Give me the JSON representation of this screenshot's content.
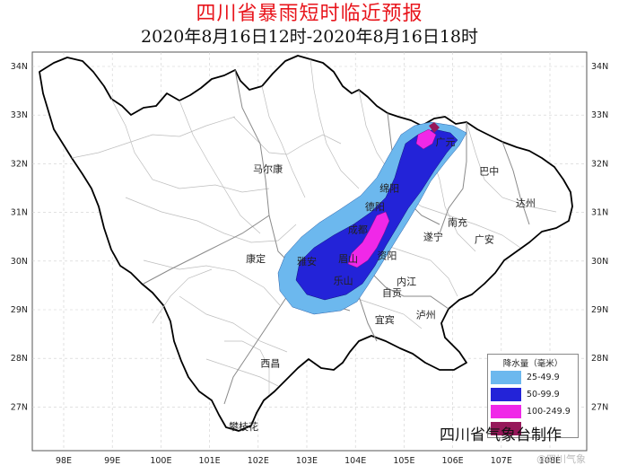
{
  "title": "四川省暴雨短时临近预报",
  "subtitle": "2020年8月16日12时-2020年8月16日18时",
  "lon_ticks": [
    "98E",
    "99E",
    "100E",
    "101E",
    "102E",
    "103E",
    "104E",
    "105E",
    "106E",
    "107E",
    "108E"
  ],
  "lat_ticks": [
    "34N",
    "33N",
    "32N",
    "31N",
    "30N",
    "29N",
    "28N",
    "27N"
  ],
  "cities": [
    {
      "name": "马尔康",
      "lon": 102.2,
      "lat": 31.9
    },
    {
      "name": "康定",
      "lon": 101.95,
      "lat": 30.05
    },
    {
      "name": "西昌",
      "lon": 102.25,
      "lat": 27.9
    },
    {
      "name": "攀枝花",
      "lon": 101.7,
      "lat": 26.6
    },
    {
      "name": "绵阳",
      "lon": 104.7,
      "lat": 31.5
    },
    {
      "name": "广元",
      "lon": 105.85,
      "lat": 32.45
    },
    {
      "name": "巴中",
      "lon": 106.75,
      "lat": 31.85
    },
    {
      "name": "达州",
      "lon": 107.5,
      "lat": 31.2
    },
    {
      "name": "南充",
      "lon": 106.1,
      "lat": 30.8
    },
    {
      "name": "广安",
      "lon": 106.65,
      "lat": 30.45
    },
    {
      "name": "遂宁",
      "lon": 105.6,
      "lat": 30.5
    },
    {
      "name": "德阳",
      "lon": 104.4,
      "lat": 31.12
    },
    {
      "name": "成都",
      "lon": 104.05,
      "lat": 30.65
    },
    {
      "name": "资阳",
      "lon": 104.65,
      "lat": 30.12
    },
    {
      "name": "眉山",
      "lon": 103.85,
      "lat": 30.05
    },
    {
      "name": "雅安",
      "lon": 103.0,
      "lat": 30.0
    },
    {
      "name": "乐山",
      "lon": 103.75,
      "lat": 29.6
    },
    {
      "name": "自贡",
      "lon": 104.75,
      "lat": 29.35
    },
    {
      "name": "内江",
      "lon": 105.05,
      "lat": 29.58
    },
    {
      "name": "宜宾",
      "lon": 104.6,
      "lat": 28.8
    },
    {
      "name": "泸州",
      "lon": 105.45,
      "lat": 28.9
    }
  ],
  "legend": {
    "title": "降水量（毫米）",
    "items": [
      {
        "label": "25-49.9",
        "color": "#6cb8ee"
      },
      {
        "label": "50-99.9",
        "color": "#2323d8"
      },
      {
        "label": "100-249.9",
        "color": "#f028e8"
      },
      {
        "label": "",
        "color": "#96185a"
      }
    ]
  },
  "credit": "四川省气象台制作",
  "watermark": "@四川气象"
}
